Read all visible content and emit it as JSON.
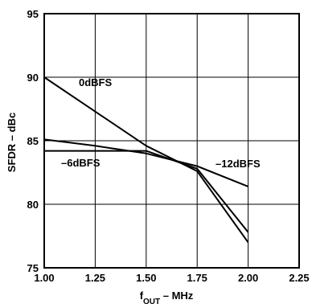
{
  "chart_data": {
    "type": "line",
    "title": "",
    "xlabel": {
      "main": "f",
      "sub": "OUT",
      "rest": " – MHz"
    },
    "ylabel": "SFDR – dBc",
    "xlim": [
      1.0,
      2.25
    ],
    "ylim": [
      75,
      95
    ],
    "xticks": [
      1.0,
      1.25,
      1.5,
      1.75,
      2.0,
      2.25
    ],
    "xtick_labels": [
      "1.00",
      "1.25",
      "1.50",
      "1.75",
      "2.00",
      "2.25"
    ],
    "yticks": [
      75,
      80,
      85,
      90,
      95
    ],
    "ytick_labels": [
      "75",
      "80",
      "85",
      "90",
      "95"
    ],
    "grid": true,
    "series": [
      {
        "name": "0dBFS",
        "x": [
          1.0,
          1.25,
          1.5,
          1.75,
          2.0
        ],
        "y": [
          90.0,
          87.3,
          84.6,
          82.6,
          77.0
        ]
      },
      {
        "name": "–6dBFS",
        "x": [
          1.0,
          1.25,
          1.5,
          1.75,
          2.0
        ],
        "y": [
          84.2,
          84.2,
          84.2,
          82.8,
          77.8
        ]
      },
      {
        "name": "–12dBFS",
        "x": [
          1.0,
          1.25,
          1.5,
          1.75,
          2.0
        ],
        "y": [
          85.1,
          84.6,
          84.0,
          83.0,
          81.4
        ]
      }
    ]
  }
}
